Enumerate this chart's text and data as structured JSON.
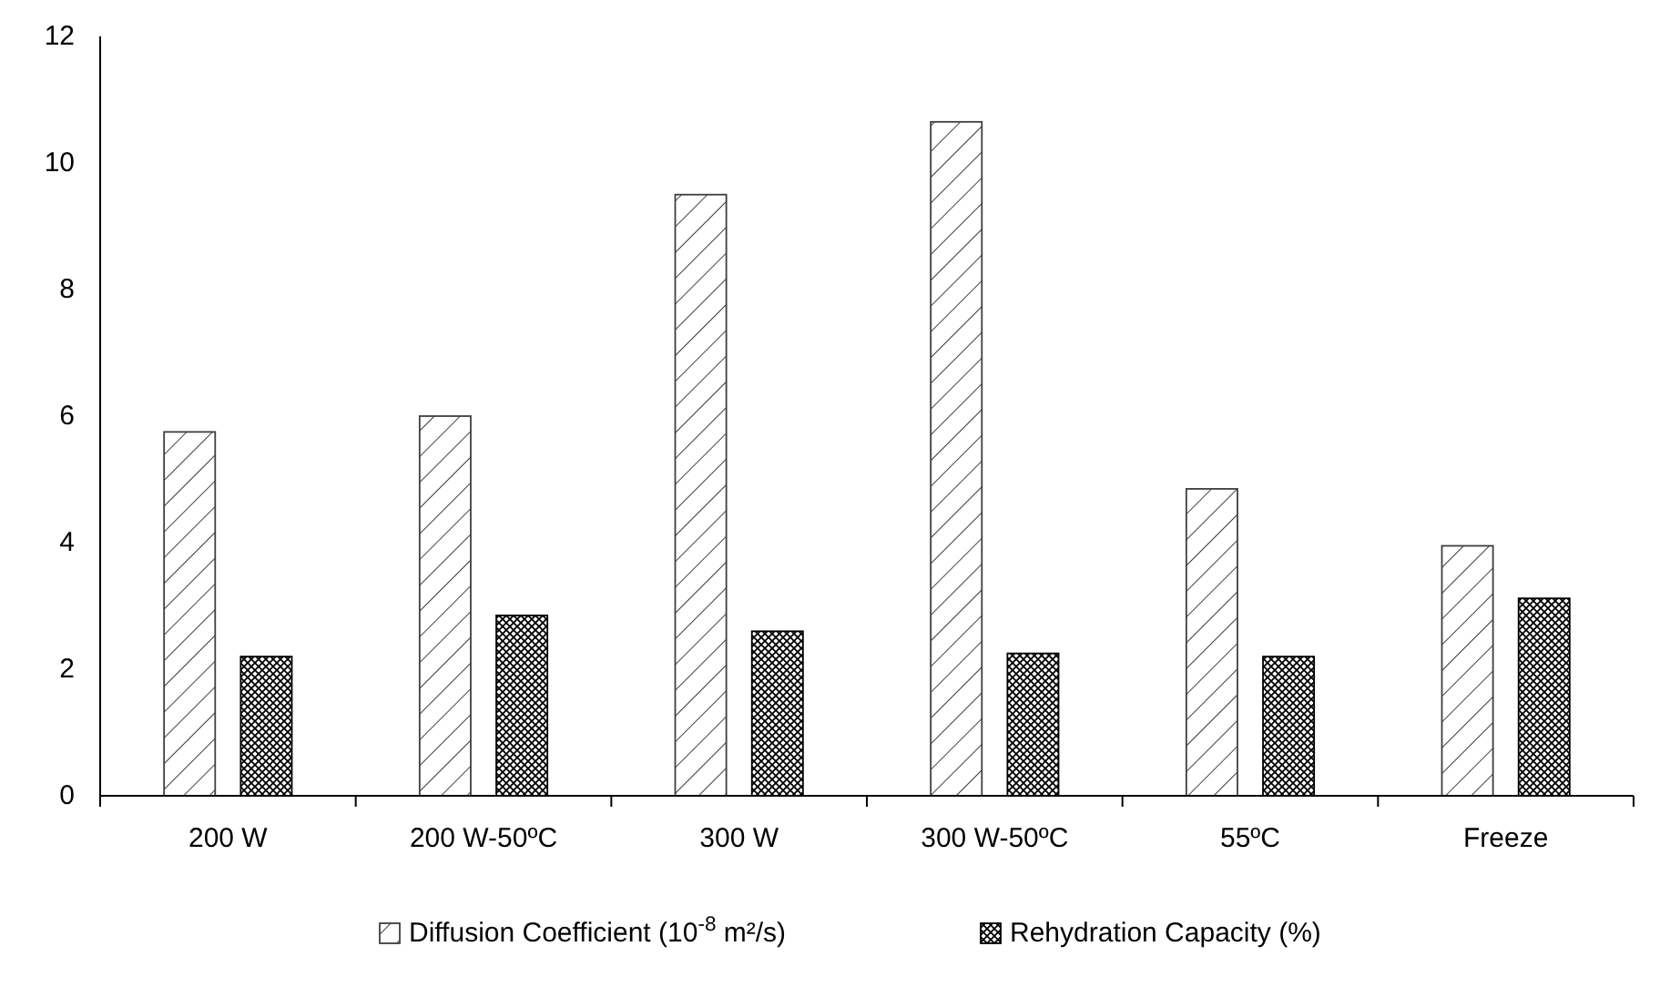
{
  "chart_data": {
    "type": "bar",
    "categories": [
      "200 W",
      "200 W-50ºC",
      "300 W",
      "300 W-50ºC",
      "55ºC",
      "Freeze"
    ],
    "series": [
      {
        "name": "Diffusion Coefficient (10$^{-8}$  m²/s)",
        "color": "#3f3f3f",
        "values": [
          5.75,
          6.0,
          9.5,
          10.65,
          4.85,
          3.95
        ]
      },
      {
        "name": "Rehydration Capacity (%)",
        "color": "#000000",
        "values": [
          2.2,
          2.85,
          2.6,
          2.25,
          2.2,
          3.12
        ]
      }
    ],
    "ylim": [
      0,
      12
    ],
    "yticks": [
      0,
      2,
      4,
      6,
      8,
      10,
      12
    ],
    "grid": false,
    "legend": "bottom"
  }
}
